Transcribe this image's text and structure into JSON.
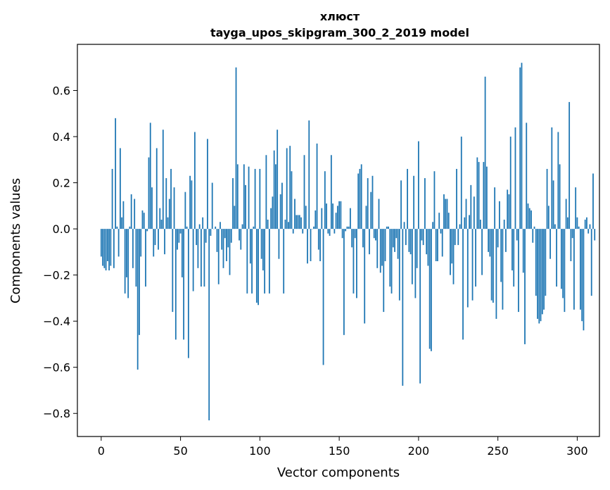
{
  "chart_data": {
    "type": "bar",
    "title": "хлюст",
    "subtitle": "tayga_upos_skipgram_300_2_2019 model",
    "xlabel": "Vector components",
    "ylabel": "Components values",
    "xlim": [
      -15,
      314
    ],
    "ylim": [
      -0.9,
      0.8
    ],
    "xticks": [
      0,
      50,
      100,
      150,
      200,
      250,
      300
    ],
    "xtick_labels": [
      "0",
      "50",
      "100",
      "150",
      "200",
      "250",
      "300"
    ],
    "yticks": [
      -0.8,
      -0.6,
      -0.4,
      -0.2,
      0.0,
      0.2,
      0.4,
      0.6
    ],
    "ytick_labels": [
      "−0.8",
      "−0.6",
      "−0.4",
      "−0.2",
      "0.0",
      "0.2",
      "0.4",
      "0.6"
    ],
    "grid": false,
    "bar_color": "#1f77b4",
    "x_start": 0,
    "values": [
      -0.12,
      -0.16,
      -0.17,
      -0.18,
      -0.14,
      -0.18,
      -0.16,
      0.26,
      -0.17,
      0.48,
      0.01,
      -0.12,
      0.35,
      0.05,
      0.12,
      -0.28,
      -0.21,
      -0.3,
      0.01,
      0.15,
      -0.17,
      0.13,
      -0.25,
      -0.61,
      -0.46,
      -0.12,
      0.08,
      0.07,
      -0.25,
      -0.01,
      0.31,
      0.46,
      0.18,
      -0.12,
      -0.07,
      0.35,
      -0.09,
      0.09,
      0.04,
      0.43,
      -0.11,
      0.22,
      0.05,
      0.13,
      0.26,
      -0.36,
      0.18,
      -0.48,
      -0.09,
      -0.06,
      -0.02,
      -0.21,
      -0.48,
      0.16,
      0.01,
      -0.56,
      0.23,
      0.21,
      -0.27,
      0.42,
      -0.07,
      -0.17,
      0.02,
      -0.25,
      0.05,
      -0.25,
      -0.06,
      0.39,
      -0.83,
      -0.03,
      0.2,
      0.0,
      0.01,
      -0.1,
      -0.24,
      0.03,
      -0.09,
      -0.17,
      -0.04,
      -0.14,
      -0.08,
      -0.2,
      -0.06,
      0.22,
      0.1,
      0.7,
      0.28,
      -0.05,
      -0.09,
      0.02,
      0.28,
      0.19,
      -0.28,
      0.27,
      -0.15,
      -0.28,
      0.01,
      0.26,
      -0.32,
      -0.33,
      0.26,
      -0.13,
      -0.18,
      -0.28,
      0.32,
      0.04,
      -0.28,
      0.09,
      0.14,
      0.34,
      0.28,
      0.43,
      -0.13,
      0.15,
      0.2,
      -0.28,
      0.04,
      0.35,
      0.03,
      0.36,
      0.25,
      -0.02,
      0.13,
      0.06,
      0.06,
      0.06,
      0.05,
      -0.02,
      0.32,
      0.1,
      -0.15,
      0.47,
      -0.14,
      0.0,
      0.01,
      0.08,
      0.37,
      -0.09,
      -0.14,
      0.09,
      -0.59,
      0.25,
      0.11,
      -0.02,
      -0.03,
      0.32,
      0.11,
      -0.02,
      0.07,
      0.1,
      0.12,
      0.12,
      -0.04,
      -0.46,
      -0.01,
      0.01,
      0.01,
      0.09,
      -0.08,
      -0.28,
      -0.04,
      -0.3,
      0.24,
      0.26,
      0.28,
      -0.08,
      -0.41,
      0.1,
      0.22,
      -0.11,
      0.16,
      0.23,
      -0.04,
      -0.05,
      -0.17,
      0.13,
      -0.19,
      -0.16,
      -0.36,
      -0.14,
      0.01,
      0.01,
      -0.25,
      -0.28,
      -0.08,
      -0.1,
      -0.04,
      -0.13,
      -0.31,
      0.21,
      -0.68,
      0.03,
      -0.07,
      0.26,
      -0.1,
      -0.11,
      -0.24,
      0.23,
      -0.3,
      -0.17,
      0.38,
      -0.67,
      -0.05,
      -0.07,
      0.22,
      -0.11,
      -0.16,
      -0.52,
      -0.53,
      0.03,
      0.25,
      -0.14,
      -0.14,
      0.07,
      -0.02,
      -0.12,
      0.15,
      0.13,
      0.13,
      0.07,
      -0.2,
      -0.15,
      -0.24,
      -0.07,
      0.26,
      -0.07,
      0.02,
      0.4,
      -0.48,
      0.05,
      0.13,
      -0.34,
      0.06,
      0.19,
      -0.31,
      0.14,
      -0.25,
      0.31,
      0.29,
      0.04,
      -0.2,
      0.29,
      0.66,
      0.27,
      -0.1,
      -0.12,
      -0.31,
      -0.32,
      0.18,
      -0.39,
      -0.08,
      0.12,
      -0.23,
      -0.35,
      0.04,
      -0.1,
      0.17,
      0.15,
      0.4,
      -0.18,
      -0.25,
      0.44,
      -0.05,
      -0.36,
      0.7,
      0.72,
      -0.19,
      -0.5,
      0.46,
      0.11,
      0.09,
      0.08,
      -0.06,
      0.01,
      -0.29,
      -0.39,
      -0.41,
      -0.4,
      -0.37,
      -0.35,
      -0.29,
      0.26,
      0.1,
      -0.13,
      0.44,
      0.21,
      0.02,
      -0.25,
      0.42,
      0.28,
      -0.26,
      -0.3,
      -0.36,
      0.13,
      0.05,
      0.55,
      -0.14,
      -0.04,
      -0.35,
      0.18,
      0.05,
      0.01,
      -0.35,
      -0.4,
      -0.44,
      0.04,
      0.05,
      -0.02,
      0.02,
      -0.29,
      0.24,
      -0.05
    ]
  }
}
